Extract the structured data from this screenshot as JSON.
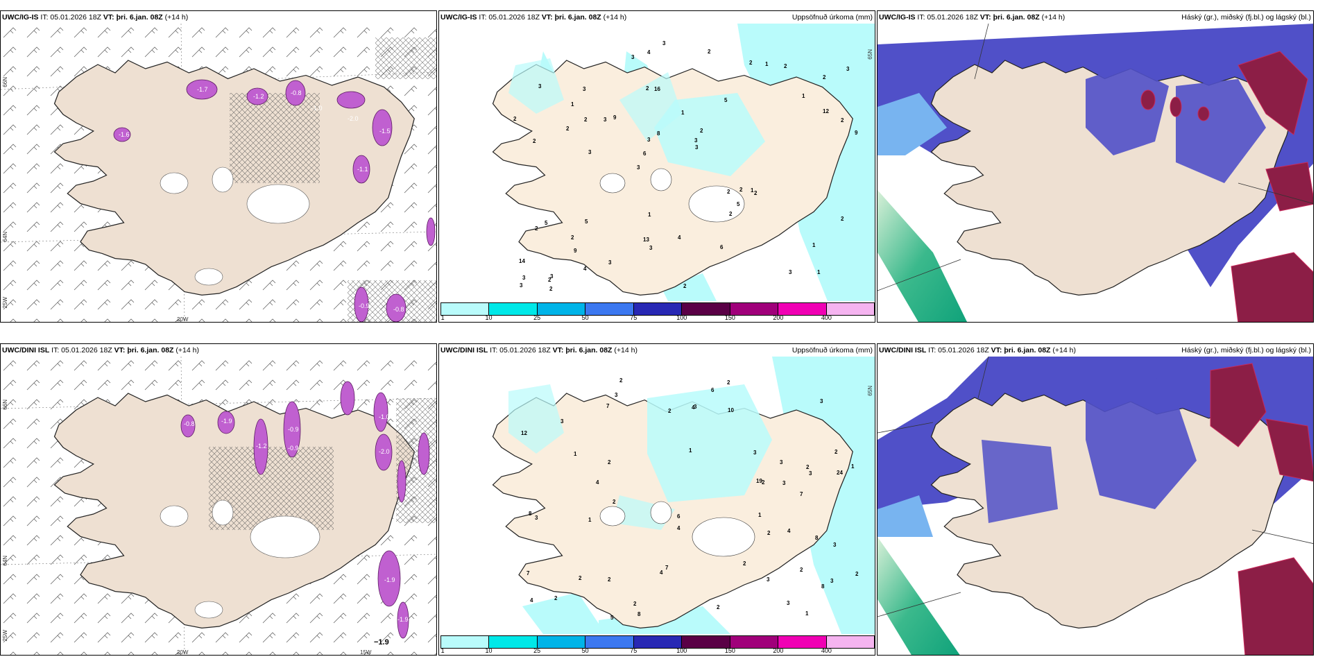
{
  "panels": [
    {
      "model": "UWC/IG-IS",
      "it": "IT: 05.01.2026 18Z",
      "vt": "VT: þri. 6.jan. 08Z",
      "lead": "(+14 h)",
      "right": ""
    },
    {
      "model": "UWC/IG-IS",
      "it": "IT: 05.01.2026 18Z",
      "vt": "VT: þri. 6.jan. 08Z",
      "lead": "(+14 h)",
      "right": "Uppsöfnuð úrkoma (mm)"
    },
    {
      "model": "UWC/IG-IS",
      "it": "IT: 05.01.2026 18Z",
      "vt": "VT: þri. 6.jan. 08Z",
      "lead": "(+14 h)",
      "right": "Háský (gr.), miðský (fj.bl.) og lágský (bl.)"
    },
    {
      "model": "UWC/DINI ISL",
      "it": "IT: 05.01.2026 18Z",
      "vt": "VT: þri. 6.jan. 08Z",
      "lead": "(+14 h)",
      "right": ""
    },
    {
      "model": "UWC/DINI ISL",
      "it": "IT: 05.01.2026 18Z",
      "vt": "VT: þri. 6.jan. 08Z",
      "lead": "(+14 h)",
      "right": "Uppsöfnuð úrkoma (mm)"
    },
    {
      "model": "UWC/DINI ISL",
      "it": "IT: 05.01.2026 18Z",
      "vt": "VT: þri. 6.jan. 08Z",
      "lead": "(+14 h)",
      "right": "Háský (gr.), miðský (fj.bl.) og lágský (bl.)"
    }
  ],
  "axis_labels": {
    "lat66": "66N",
    "lat64": "64N",
    "lon25": "25W",
    "lon20": "20W",
    "lon15": "15W",
    "lat65": "65N"
  },
  "colorbar": {
    "labels": [
      "1",
      "10",
      "25",
      "50",
      "75",
      "100",
      "150",
      "200",
      "400"
    ],
    "colors": [
      "#b9fbfb",
      "#00e8e8",
      "#00b4e8",
      "#3c78f0",
      "#2828b4",
      "#5a0046",
      "#a0007a",
      "#f000b4",
      "#f5b4f0"
    ]
  },
  "precip_labels_top": [
    "1",
    "2",
    "2",
    "3",
    "5",
    "3",
    "2",
    "1",
    "5",
    "9",
    "14",
    "9",
    "16",
    "2",
    "2",
    "3",
    "4",
    "9",
    "2",
    "12",
    "6",
    "13",
    "3",
    "3",
    "2",
    "5",
    "3",
    "1",
    "1",
    "2",
    "3",
    "2",
    "2",
    "4",
    "2",
    "3",
    "3",
    "3",
    "3",
    "2",
    "1",
    "3",
    "5",
    "6",
    "2",
    "2",
    "3",
    "4",
    "2",
    "3",
    "3",
    "2",
    "1",
    "1",
    "2",
    "2",
    "3",
    "8",
    "2",
    "1",
    "3",
    "2",
    "2"
  ],
  "precip_labels_bottom": [
    "2",
    "2",
    "3",
    "1",
    "4",
    "3",
    "2",
    "2",
    "3",
    "1",
    "24",
    "12",
    "7",
    "8",
    "7",
    "3",
    "8",
    "7",
    "7",
    "3",
    "8",
    "3",
    "2",
    "19",
    "2",
    "4",
    "6",
    "10",
    "3",
    "2",
    "1",
    "3",
    "5",
    "6",
    "8",
    "3",
    "2",
    "2",
    "1",
    "2",
    "4",
    "3",
    "4",
    "4",
    "3",
    "2",
    "2",
    "2",
    "2",
    "3",
    "2",
    "4",
    "3",
    "1",
    "2",
    "1",
    "2"
  ],
  "temp_labels_top": [
    "-1.6",
    "-1.7",
    "-1.2",
    "-0.8",
    "-1.0",
    "-2.0",
    "-1.5",
    "-1.1",
    "-0.9",
    "-0.8"
  ],
  "temp_labels_bottom": [
    "-0.8",
    "-1.9",
    "-1.2",
    "-0.9",
    "-0.9",
    "-2.0",
    "-1.9",
    "-1.9",
    "-1.0"
  ]
}
